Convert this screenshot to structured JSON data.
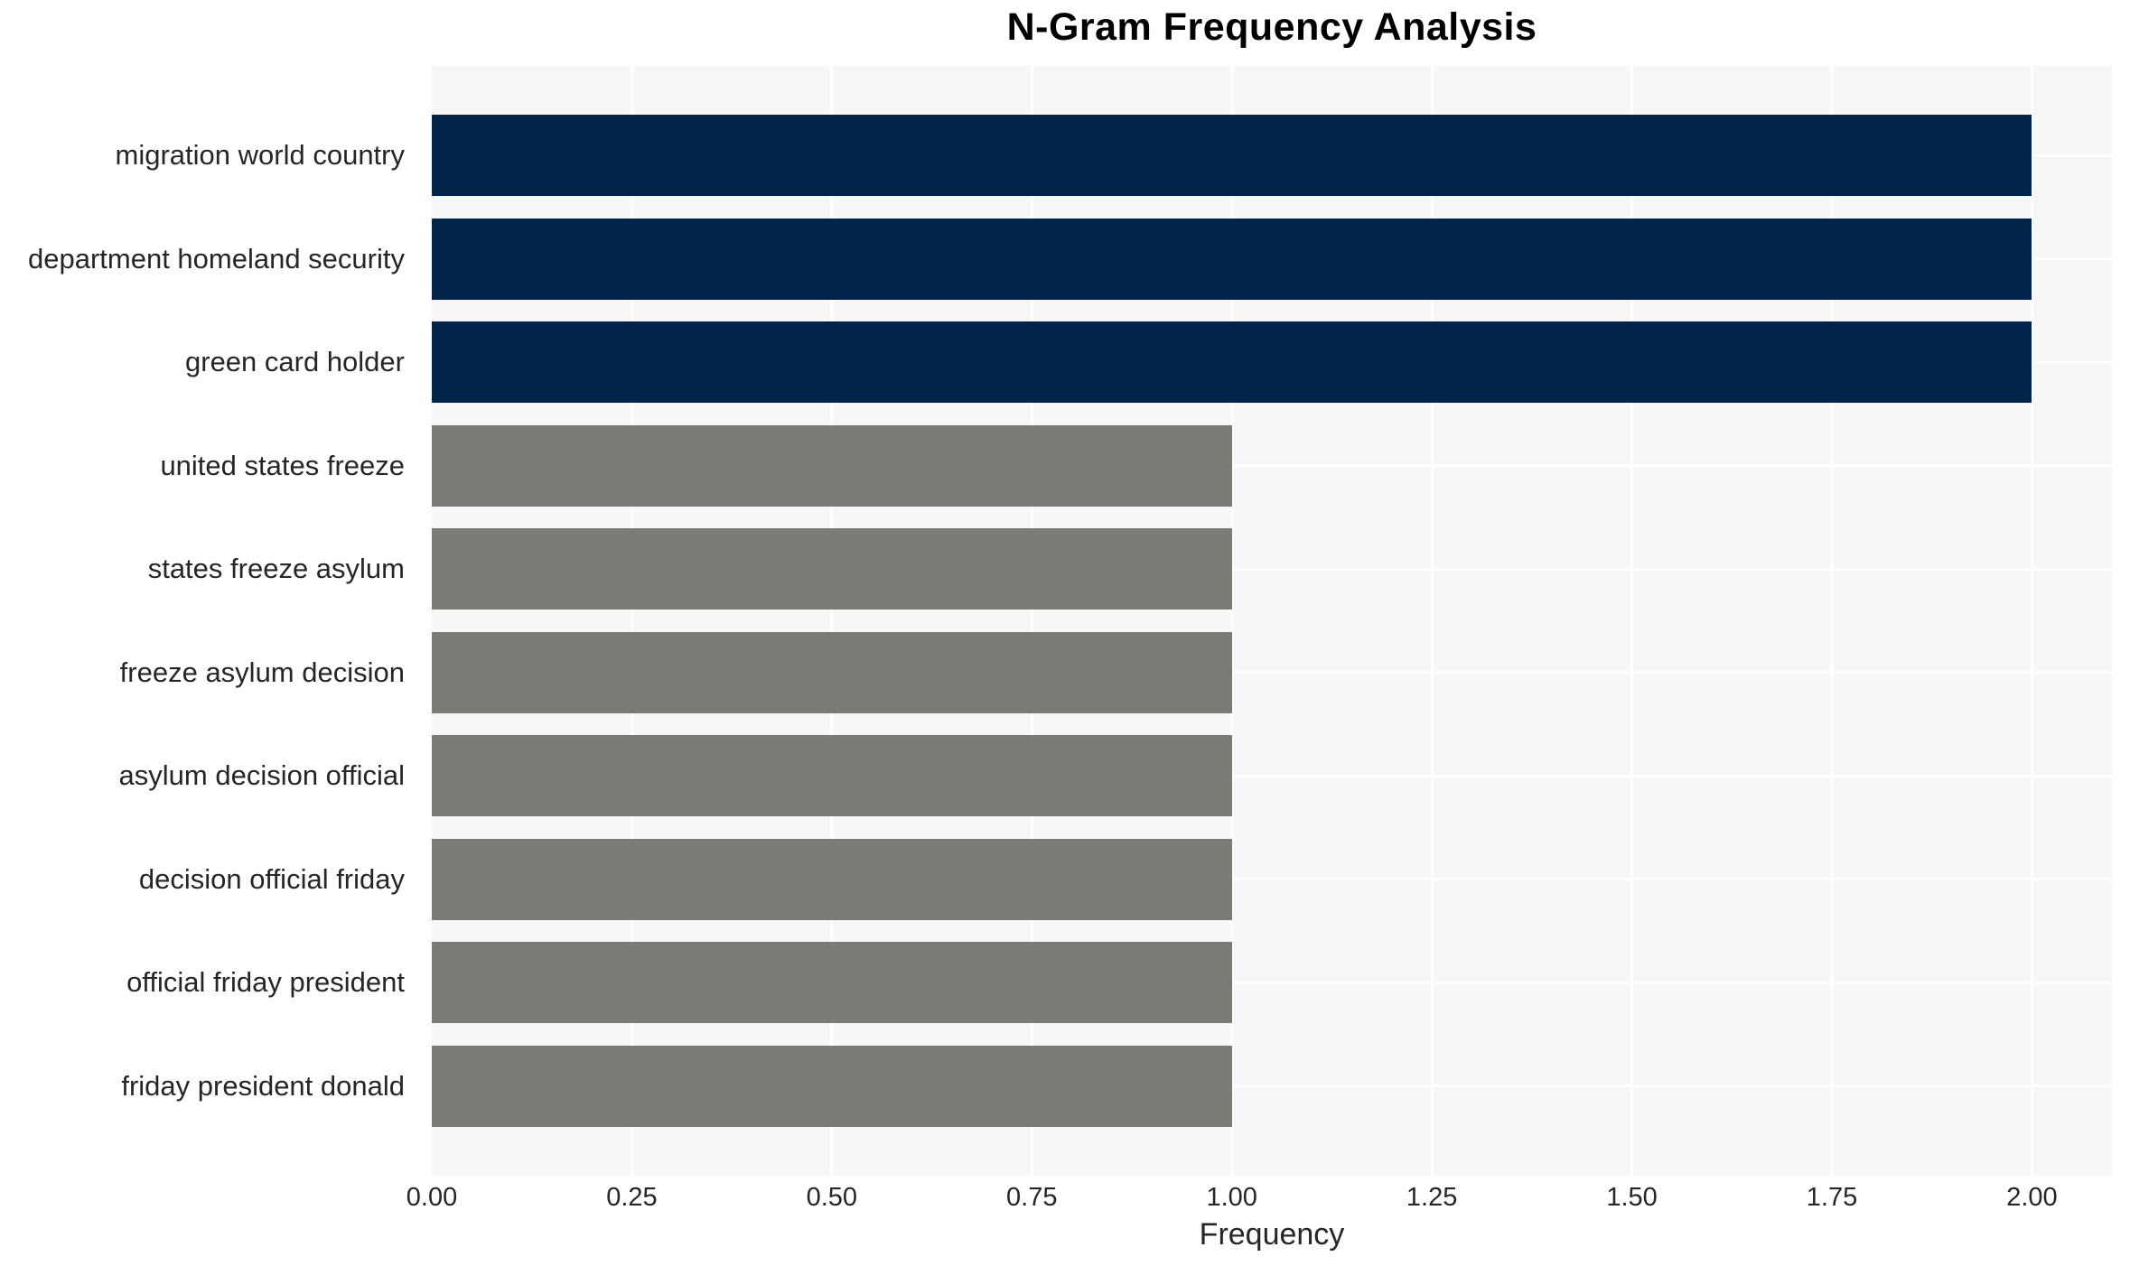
{
  "chart_data": {
    "type": "bar",
    "orientation": "horizontal",
    "title": "N-Gram Frequency Analysis",
    "xlabel": "Frequency",
    "ylabel": "",
    "categories": [
      "migration world country",
      "department homeland security",
      "green card holder",
      "united states freeze",
      "states freeze asylum",
      "freeze asylum decision",
      "asylum decision official",
      "decision official friday",
      "official friday president",
      "friday president donald"
    ],
    "values": [
      2,
      2,
      2,
      1,
      1,
      1,
      1,
      1,
      1,
      1
    ],
    "bar_colors": [
      "#02234a",
      "#02234a",
      "#02234a",
      "#7b7a77",
      "#7b7a77",
      "#7b7a77",
      "#7b7a77",
      "#7b7a77",
      "#7b7a77",
      "#7b7a77"
    ],
    "xticks": [
      "0.00",
      "0.25",
      "0.50",
      "0.75",
      "1.00",
      "1.25",
      "1.50",
      "1.75",
      "2.00"
    ],
    "xtick_values": [
      0,
      0.25,
      0.5,
      0.75,
      1.0,
      1.25,
      1.5,
      1.75,
      2.0
    ],
    "xlim": [
      0,
      2.1
    ],
    "grid": true,
    "legend_position": "none",
    "panel_background": "#f7f7f7",
    "grid_color": "#ffffff"
  }
}
